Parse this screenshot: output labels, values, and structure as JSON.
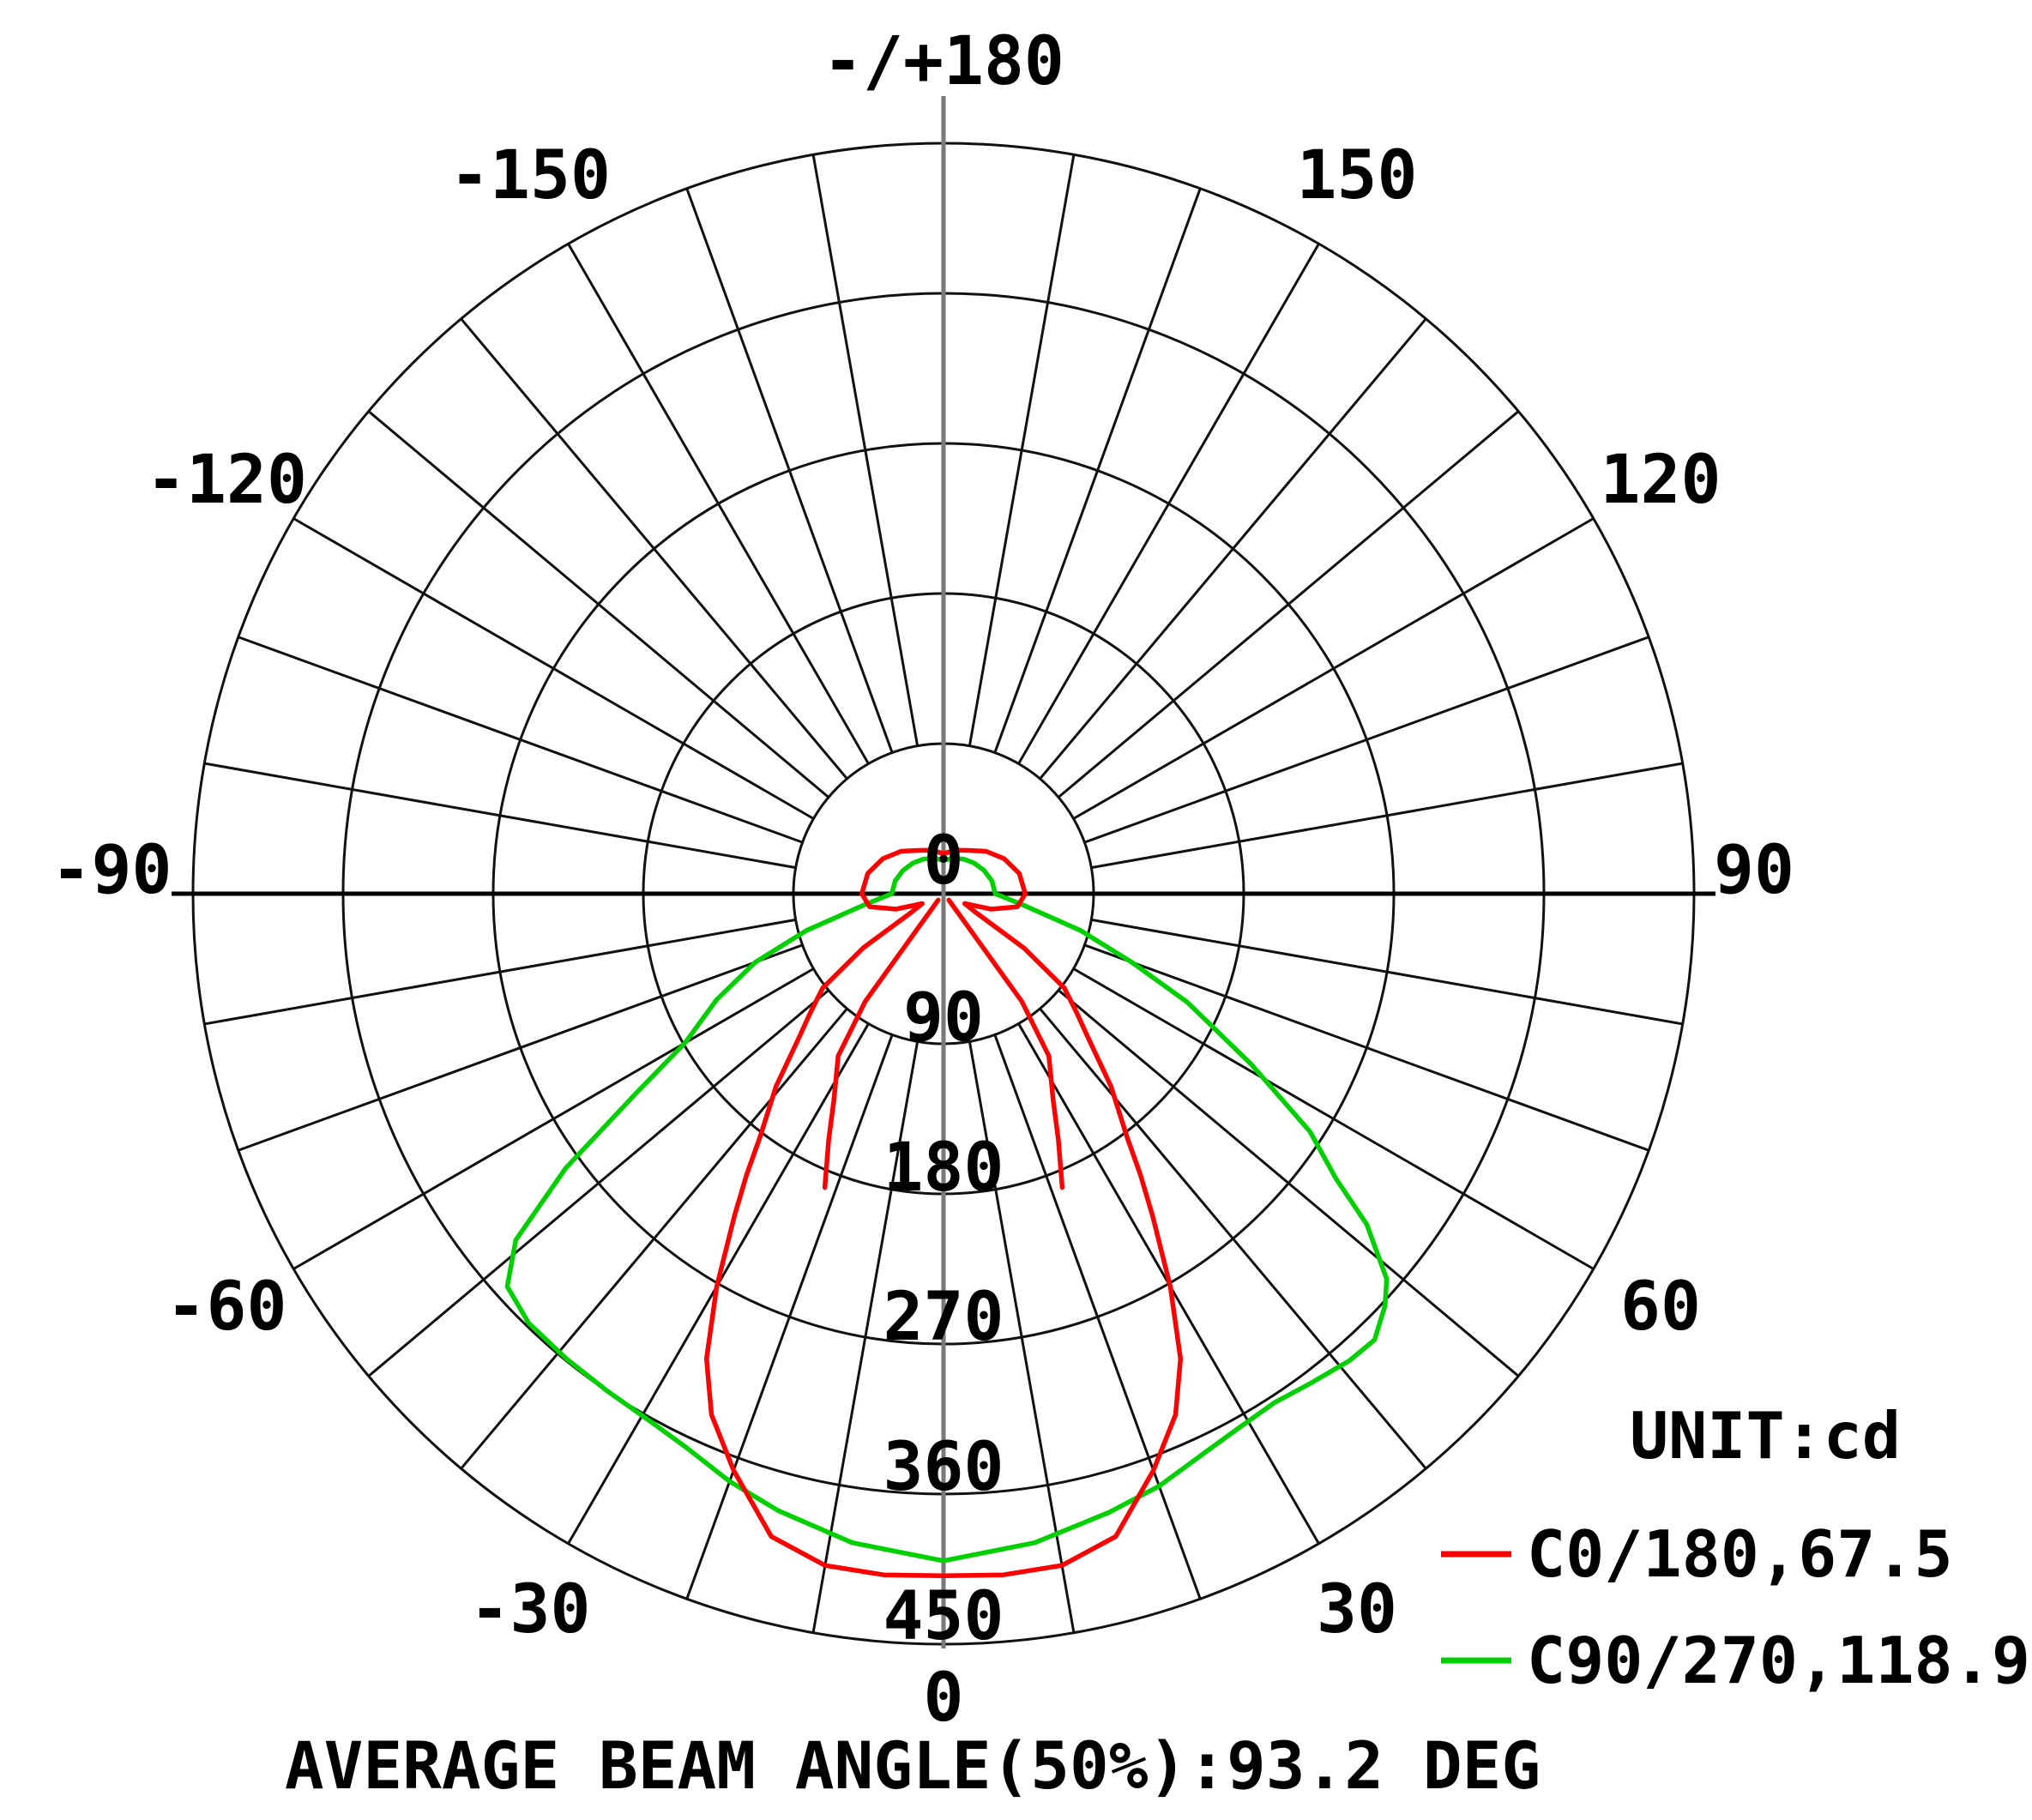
{
  "caption": "AVERAGE BEAM ANGLE(50%):93.2 DEG",
  "legend": {
    "unit_label": "UNIT:cd",
    "entries": [
      {
        "label": "C0/180,67.5",
        "color": "#ff0000"
      },
      {
        "label": "C90/270,118.9",
        "color": "#00d000"
      }
    ]
  },
  "chart_data": {
    "type": "line",
    "subtype": "polar-intensity-distribution",
    "unit": "cd",
    "angle_zero_direction": "down",
    "angle_labels": {
      "top": "-/+180",
      "p150": "150",
      "p120": "120",
      "p90": "90",
      "p60": "60",
      "p30": "30",
      "bottom": "0",
      "m30": "-30",
      "m60": "-60",
      "m90": "-90",
      "m120": "-120",
      "m150": "-150"
    },
    "radial_labels": [
      "0",
      "90",
      "180",
      "270",
      "360",
      "450"
    ],
    "grid": {
      "ring_values": [
        90,
        180,
        270,
        360,
        450
      ],
      "ring_max": 450,
      "spoke_step_deg": 10,
      "spoke_inner_value": 90,
      "grid_on": true
    },
    "average_beam_angle_50pct_deg": 93.2,
    "series": [
      {
        "name": "C90/270",
        "beam_angle_deg": 118.9,
        "color": "#00d000",
        "points_deg_cd": [
          [
            -180,
            20
          ],
          [
            -165,
            22
          ],
          [
            -150,
            24
          ],
          [
            -135,
            26
          ],
          [
            -120,
            28
          ],
          [
            -105,
            30
          ],
          [
            -90,
            31
          ],
          [
            -82,
            48
          ],
          [
            -75,
            85
          ],
          [
            -70,
            120
          ],
          [
            -65,
            150
          ],
          [
            -60,
            179
          ],
          [
            -57,
            220
          ],
          [
            -54,
            280
          ],
          [
            -51,
            330
          ],
          [
            -48,
            352
          ],
          [
            -44,
            358
          ],
          [
            -39,
            359
          ],
          [
            -34,
            360
          ],
          [
            -29,
            362
          ],
          [
            -25,
            366
          ],
          [
            -20,
            375
          ],
          [
            -15,
            383
          ],
          [
            -8,
            393
          ],
          [
            0,
            400
          ],
          [
            8,
            393
          ],
          [
            15,
            384
          ],
          [
            20,
            378
          ],
          [
            25,
            370
          ],
          [
            29,
            366
          ],
          [
            33,
            364
          ],
          [
            37,
            367
          ],
          [
            41,
            371
          ],
          [
            44,
            372
          ],
          [
            47,
            362
          ],
          [
            49,
            352
          ],
          [
            52,
            322
          ],
          [
            54,
            291
          ],
          [
            57,
            262
          ],
          [
            61,
            211
          ],
          [
            66,
            160
          ],
          [
            70,
            120
          ],
          [
            75,
            85
          ],
          [
            82,
            48
          ],
          [
            90,
            31
          ],
          [
            105,
            30
          ],
          [
            120,
            28
          ],
          [
            135,
            26
          ],
          [
            150,
            24
          ],
          [
            165,
            22
          ],
          [
            180,
            20
          ]
        ],
        "extra_strands_deg_cd": []
      },
      {
        "name": "C0/180",
        "beam_angle_deg": 67.5,
        "color": "#ff0000",
        "points_deg_cd": [
          [
            -180,
            24
          ],
          [
            -165,
            27
          ],
          [
            -150,
            30
          ],
          [
            -135,
            36
          ],
          [
            -120,
            42
          ],
          [
            -105,
            47
          ],
          [
            -90,
            49
          ],
          [
            -80,
            45
          ],
          [
            -72,
            30
          ],
          [
            -65,
            14
          ],
          [
            -60,
            22
          ],
          [
            -56,
            58
          ],
          [
            -52,
            92
          ],
          [
            -48,
            108
          ],
          [
            -45,
            123
          ],
          [
            -41,
            153
          ],
          [
            -37,
            183
          ],
          [
            -35,
            206
          ],
          [
            -33,
            230
          ],
          [
            -30,
            272
          ],
          [
            -27,
            313
          ],
          [
            -24,
            342
          ],
          [
            -20,
            368
          ],
          [
            -15,
            399
          ],
          [
            -10,
            409
          ],
          [
            -5,
            410
          ],
          [
            0,
            409
          ],
          [
            5,
            410
          ],
          [
            10,
            409
          ],
          [
            15,
            399
          ],
          [
            20,
            368
          ],
          [
            24,
            342
          ],
          [
            27,
            313
          ],
          [
            30,
            272
          ],
          [
            33,
            230
          ],
          [
            35,
            206
          ],
          [
            37,
            183
          ],
          [
            41,
            153
          ],
          [
            45,
            123
          ],
          [
            48,
            108
          ],
          [
            52,
            92
          ],
          [
            56,
            58
          ],
          [
            60,
            22
          ],
          [
            65,
            14
          ],
          [
            72,
            30
          ],
          [
            80,
            45
          ],
          [
            90,
            49
          ],
          [
            105,
            47
          ],
          [
            120,
            42
          ],
          [
            135,
            36
          ],
          [
            150,
            30
          ],
          [
            165,
            27
          ],
          [
            180,
            24
          ]
        ],
        "extra_strands_deg_cd": [
          [
            [
              -40,
              5
            ],
            [
              -36,
              80
            ],
            [
              -33,
              116
            ],
            [
              -28,
              140
            ],
            [
              -25,
              163
            ],
            [
              -22,
              190
            ]
          ],
          [
            [
              40,
              5
            ],
            [
              36,
              80
            ],
            [
              33,
              116
            ],
            [
              28,
              140
            ],
            [
              25,
              163
            ],
            [
              22,
              190
            ]
          ]
        ]
      }
    ],
    "layout": {
      "center_x": 1100,
      "center_y": 1042,
      "outer_radius_px": 875,
      "axis_color_horizontal": "#000000",
      "axis_color_vertical": "#7a7a7a",
      "grid_color": "#111111"
    }
  }
}
